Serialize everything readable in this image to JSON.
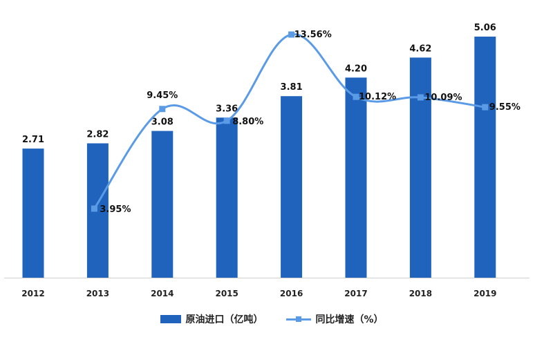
{
  "chart_data": {
    "type": "bar",
    "categories": [
      "2012",
      "2013",
      "2014",
      "2015",
      "2016",
      "2017",
      "2018",
      "2019"
    ],
    "series": [
      {
        "name": "原油进口（亿吨）",
        "type": "bar",
        "values": [
          2.71,
          2.82,
          3.08,
          3.36,
          3.81,
          4.2,
          4.62,
          5.06
        ],
        "labels": [
          "2.71",
          "2.82",
          "3.08",
          "3.36",
          "3.81",
          "4.20",
          "4.62",
          "5.06"
        ]
      },
      {
        "name": "同比增速（%）",
        "type": "line",
        "values": [
          null,
          3.95,
          9.45,
          8.8,
          13.56,
          10.12,
          10.09,
          9.55
        ],
        "labels": [
          "",
          "3.95%",
          "9.45%",
          "8.80%",
          "13.56%",
          "10.12%",
          "10.09%",
          "9.55%"
        ]
      }
    ],
    "ylim_bar": [
      0,
      5.06
    ],
    "ylim_line": [
      0,
      13.56
    ],
    "grid": false,
    "legend_position": "bottom-center",
    "colors": {
      "bar": "#1f63bd",
      "line": "#5b9be6"
    }
  }
}
